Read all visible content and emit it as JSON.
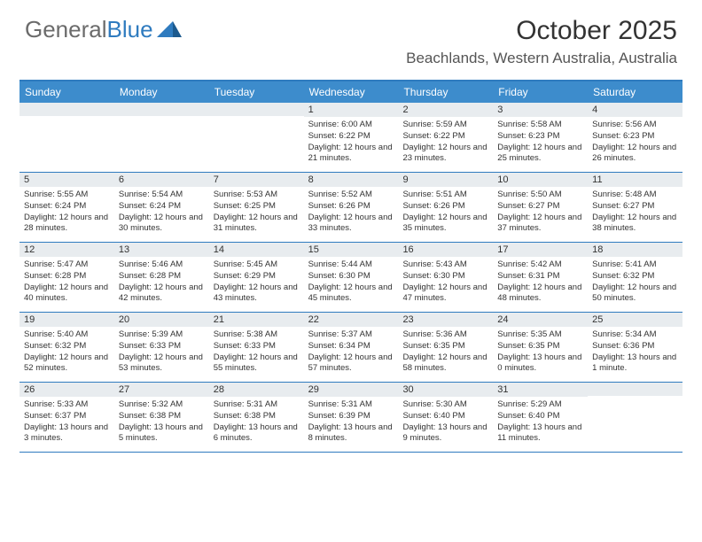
{
  "logo": {
    "text1": "General",
    "text2": "Blue"
  },
  "title": "October 2025",
  "location": "Beachlands, Western Australia, Australia",
  "colors": {
    "header_bg": "#3d8ccc",
    "border": "#2f7bbf",
    "daynum_bg": "#e8ecef",
    "logo_gray": "#6b6b6b",
    "logo_blue": "#2f7bbf"
  },
  "dayHeaders": [
    "Sunday",
    "Monday",
    "Tuesday",
    "Wednesday",
    "Thursday",
    "Friday",
    "Saturday"
  ],
  "weeks": [
    [
      {
        "n": "",
        "lines": []
      },
      {
        "n": "",
        "lines": []
      },
      {
        "n": "",
        "lines": []
      },
      {
        "n": "1",
        "lines": [
          "Sunrise: 6:00 AM",
          "Sunset: 6:22 PM",
          "Daylight: 12 hours and 21 minutes."
        ]
      },
      {
        "n": "2",
        "lines": [
          "Sunrise: 5:59 AM",
          "Sunset: 6:22 PM",
          "Daylight: 12 hours and 23 minutes."
        ]
      },
      {
        "n": "3",
        "lines": [
          "Sunrise: 5:58 AM",
          "Sunset: 6:23 PM",
          "Daylight: 12 hours and 25 minutes."
        ]
      },
      {
        "n": "4",
        "lines": [
          "Sunrise: 5:56 AM",
          "Sunset: 6:23 PM",
          "Daylight: 12 hours and 26 minutes."
        ]
      }
    ],
    [
      {
        "n": "5",
        "lines": [
          "Sunrise: 5:55 AM",
          "Sunset: 6:24 PM",
          "Daylight: 12 hours and 28 minutes."
        ]
      },
      {
        "n": "6",
        "lines": [
          "Sunrise: 5:54 AM",
          "Sunset: 6:24 PM",
          "Daylight: 12 hours and 30 minutes."
        ]
      },
      {
        "n": "7",
        "lines": [
          "Sunrise: 5:53 AM",
          "Sunset: 6:25 PM",
          "Daylight: 12 hours and 31 minutes."
        ]
      },
      {
        "n": "8",
        "lines": [
          "Sunrise: 5:52 AM",
          "Sunset: 6:26 PM",
          "Daylight: 12 hours and 33 minutes."
        ]
      },
      {
        "n": "9",
        "lines": [
          "Sunrise: 5:51 AM",
          "Sunset: 6:26 PM",
          "Daylight: 12 hours and 35 minutes."
        ]
      },
      {
        "n": "10",
        "lines": [
          "Sunrise: 5:50 AM",
          "Sunset: 6:27 PM",
          "Daylight: 12 hours and 37 minutes."
        ]
      },
      {
        "n": "11",
        "lines": [
          "Sunrise: 5:48 AM",
          "Sunset: 6:27 PM",
          "Daylight: 12 hours and 38 minutes."
        ]
      }
    ],
    [
      {
        "n": "12",
        "lines": [
          "Sunrise: 5:47 AM",
          "Sunset: 6:28 PM",
          "Daylight: 12 hours and 40 minutes."
        ]
      },
      {
        "n": "13",
        "lines": [
          "Sunrise: 5:46 AM",
          "Sunset: 6:28 PM",
          "Daylight: 12 hours and 42 minutes."
        ]
      },
      {
        "n": "14",
        "lines": [
          "Sunrise: 5:45 AM",
          "Sunset: 6:29 PM",
          "Daylight: 12 hours and 43 minutes."
        ]
      },
      {
        "n": "15",
        "lines": [
          "Sunrise: 5:44 AM",
          "Sunset: 6:30 PM",
          "Daylight: 12 hours and 45 minutes."
        ]
      },
      {
        "n": "16",
        "lines": [
          "Sunrise: 5:43 AM",
          "Sunset: 6:30 PM",
          "Daylight: 12 hours and 47 minutes."
        ]
      },
      {
        "n": "17",
        "lines": [
          "Sunrise: 5:42 AM",
          "Sunset: 6:31 PM",
          "Daylight: 12 hours and 48 minutes."
        ]
      },
      {
        "n": "18",
        "lines": [
          "Sunrise: 5:41 AM",
          "Sunset: 6:32 PM",
          "Daylight: 12 hours and 50 minutes."
        ]
      }
    ],
    [
      {
        "n": "19",
        "lines": [
          "Sunrise: 5:40 AM",
          "Sunset: 6:32 PM",
          "Daylight: 12 hours and 52 minutes."
        ]
      },
      {
        "n": "20",
        "lines": [
          "Sunrise: 5:39 AM",
          "Sunset: 6:33 PM",
          "Daylight: 12 hours and 53 minutes."
        ]
      },
      {
        "n": "21",
        "lines": [
          "Sunrise: 5:38 AM",
          "Sunset: 6:33 PM",
          "Daylight: 12 hours and 55 minutes."
        ]
      },
      {
        "n": "22",
        "lines": [
          "Sunrise: 5:37 AM",
          "Sunset: 6:34 PM",
          "Daylight: 12 hours and 57 minutes."
        ]
      },
      {
        "n": "23",
        "lines": [
          "Sunrise: 5:36 AM",
          "Sunset: 6:35 PM",
          "Daylight: 12 hours and 58 minutes."
        ]
      },
      {
        "n": "24",
        "lines": [
          "Sunrise: 5:35 AM",
          "Sunset: 6:35 PM",
          "Daylight: 13 hours and 0 minutes."
        ]
      },
      {
        "n": "25",
        "lines": [
          "Sunrise: 5:34 AM",
          "Sunset: 6:36 PM",
          "Daylight: 13 hours and 1 minute."
        ]
      }
    ],
    [
      {
        "n": "26",
        "lines": [
          "Sunrise: 5:33 AM",
          "Sunset: 6:37 PM",
          "Daylight: 13 hours and 3 minutes."
        ]
      },
      {
        "n": "27",
        "lines": [
          "Sunrise: 5:32 AM",
          "Sunset: 6:38 PM",
          "Daylight: 13 hours and 5 minutes."
        ]
      },
      {
        "n": "28",
        "lines": [
          "Sunrise: 5:31 AM",
          "Sunset: 6:38 PM",
          "Daylight: 13 hours and 6 minutes."
        ]
      },
      {
        "n": "29",
        "lines": [
          "Sunrise: 5:31 AM",
          "Sunset: 6:39 PM",
          "Daylight: 13 hours and 8 minutes."
        ]
      },
      {
        "n": "30",
        "lines": [
          "Sunrise: 5:30 AM",
          "Sunset: 6:40 PM",
          "Daylight: 13 hours and 9 minutes."
        ]
      },
      {
        "n": "31",
        "lines": [
          "Sunrise: 5:29 AM",
          "Sunset: 6:40 PM",
          "Daylight: 13 hours and 11 minutes."
        ]
      },
      {
        "n": "",
        "lines": []
      }
    ]
  ]
}
